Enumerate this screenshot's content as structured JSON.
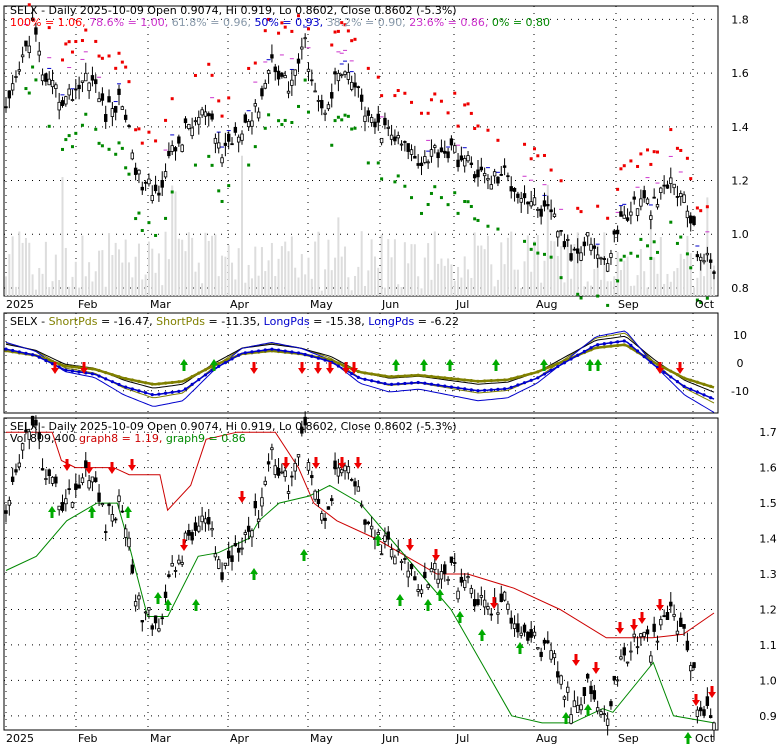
{
  "chart_data": [
    {
      "type": "candlestick",
      "title": "SELX - Daily 2025-10-09 Open 0.9074, Hi 0.919, Lo 0.8602, Close 0.8602 (-5.3%)",
      "fib_levels": [
        {
          "label": "100% = 1.06",
          "value": 1.06,
          "color": "#ff0000"
        },
        {
          "label": "78.6% = 1.00",
          "value": 1.0,
          "color": "#cc33cc"
        },
        {
          "label": "61.8% = 0.96",
          "value": 0.96,
          "color": "#8899aa"
        },
        {
          "label": "50% = 0.93",
          "value": 0.93,
          "color": "#0000cc"
        },
        {
          "label": "38.2% = 0.90",
          "value": 0.9,
          "color": "#8899aa"
        },
        {
          "label": "23.6% = 0.86",
          "value": 0.86,
          "color": "#cc33cc"
        },
        {
          "label": "0% = 0.80",
          "value": 0.8,
          "color": "#008800"
        }
      ],
      "y_ticks": [
        "1.8",
        "1.6",
        "1.4",
        "1.2",
        "1.0",
        "0.8"
      ],
      "ylim": [
        0.77,
        1.85
      ],
      "x_labels": [
        "2025",
        "Feb",
        "Mar",
        "Apr",
        "May",
        "Jun",
        "Jul",
        "Aug",
        "Sep",
        "Oct"
      ],
      "ohlc_close_anchors": [
        [
          0,
          1.44
        ],
        [
          5,
          1.65
        ],
        [
          8,
          1.78
        ],
        [
          12,
          1.55
        ],
        [
          18,
          1.5
        ],
        [
          25,
          1.6
        ],
        [
          30,
          1.45
        ],
        [
          35,
          1.5
        ],
        [
          40,
          1.2
        ],
        [
          45,
          1.15
        ],
        [
          50,
          1.3
        ],
        [
          55,
          1.4
        ],
        [
          60,
          1.45
        ],
        [
          65,
          1.3
        ],
        [
          70,
          1.4
        ],
        [
          75,
          1.45
        ],
        [
          80,
          1.65
        ],
        [
          85,
          1.55
        ],
        [
          90,
          1.7
        ],
        [
          95,
          1.45
        ],
        [
          100,
          1.6
        ],
        [
          105,
          1.55
        ],
        [
          110,
          1.4
        ],
        [
          115,
          1.38
        ],
        [
          120,
          1.32
        ],
        [
          125,
          1.28
        ],
        [
          130,
          1.32
        ],
        [
          135,
          1.3
        ],
        [
          140,
          1.25
        ],
        [
          145,
          1.2
        ],
        [
          150,
          1.22
        ],
        [
          155,
          1.15
        ],
        [
          160,
          1.1
        ],
        [
          165,
          1.05
        ],
        [
          170,
          0.92
        ],
        [
          175,
          1.0
        ],
        [
          180,
          0.88
        ],
        [
          185,
          1.05
        ],
        [
          190,
          1.12
        ],
        [
          195,
          1.1
        ],
        [
          200,
          1.2
        ],
        [
          205,
          1.1
        ],
        [
          208,
          0.95
        ],
        [
          213,
          0.86
        ]
      ]
    },
    {
      "type": "line",
      "title": "SELX - ShortPds = -16.47, ShortPds = -11.35, LongPds = -15.38, LongPds = -6.22",
      "legend": [
        {
          "label": "SELX -",
          "color": "#000000"
        },
        {
          "label": "ShortPds",
          "value": "= -16.47,",
          "color": "#808000"
        },
        {
          "label": "ShortPds",
          "value": "= -11.35,",
          "color": "#808000"
        },
        {
          "label": "LongPds",
          "value": "= -15.38,",
          "color": "#0000cc"
        },
        {
          "label": "LongPds",
          "value": "= -6.22",
          "color": "#0000cc"
        }
      ],
      "y_ticks": [
        "10",
        "0",
        "-10"
      ],
      "ylim": [
        -18,
        18
      ],
      "series": [
        {
          "name": "ShortPds",
          "values": [
            -16.47
          ]
        },
        {
          "name": "ShortPds",
          "values": [
            -11.35
          ]
        },
        {
          "name": "LongPds",
          "values": [
            -15.38
          ]
        },
        {
          "name": "LongPds",
          "values": [
            -6.22
          ]
        }
      ]
    },
    {
      "type": "candlestick",
      "title": "SELX - Daily 2025-10-09 Open 0.9074, Hi 0.919, Lo 0.8602, Close 0.8602 (-5.3%)",
      "legend": [
        {
          "label": "Vol 809,400",
          "color": "#000000"
        },
        {
          "label": "graph8 = 1.19,",
          "color": "#cc0000"
        },
        {
          "label": "graph9 = 0.86",
          "color": "#008800"
        }
      ],
      "y_ticks": [
        "1.7",
        "1.6",
        "1.5",
        "1.4",
        "1.3",
        "1.2",
        "1.1",
        "1.0",
        "0.9"
      ],
      "ylim": [
        0.86,
        1.74
      ],
      "x_labels": [
        "2025",
        "Feb",
        "Mar",
        "Apr",
        "May",
        "Jun",
        "Jul",
        "Aug",
        "Sep",
        "Oct"
      ]
    }
  ]
}
